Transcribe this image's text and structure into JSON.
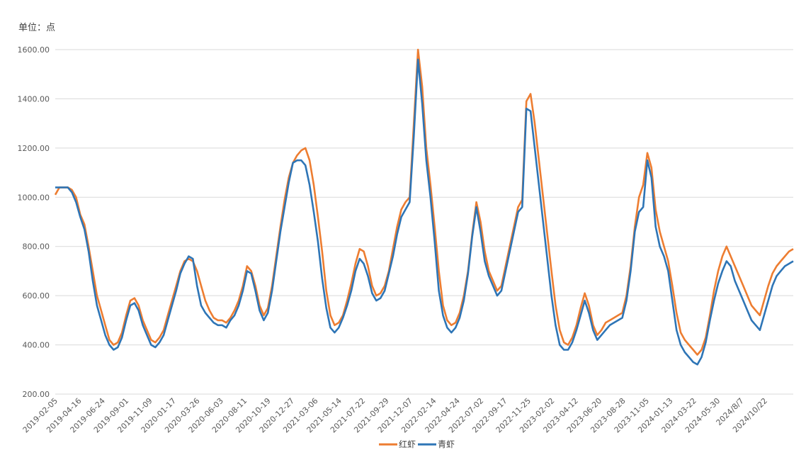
{
  "chart_data": {
    "type": "line",
    "unit_label": "单位：点",
    "ylim": [
      200,
      1600
    ],
    "y_ticks": [
      "200.00",
      "400.00",
      "600.00",
      "800.00",
      "1000.00",
      "1200.00",
      "1400.00",
      "1600.00"
    ],
    "grid": true,
    "legend_position": "bottom",
    "x_tick_labels": [
      "2019-02-05",
      "2019-04-16",
      "2019-06-24",
      "2019-09-01",
      "2019-11-09",
      "2020-01-17",
      "2020-03-26",
      "2020-06-03",
      "2020-08-11",
      "2020-10-19",
      "2020-12-27",
      "2021-03-06",
      "2021-05-14",
      "2021-07-22",
      "2021-09-29",
      "2021-12-07",
      "2022-02-14",
      "2022-04-24",
      "2022-07-02",
      "2022-09-17",
      "2022-11-25",
      "2023-02-02",
      "2023-04-12",
      "2023-06-20",
      "2023-08-28",
      "2023-11-05",
      "2024-01-13",
      "2024-03-22",
      "2024-05-30",
      "2024/8/7",
      "2024/10/22"
    ],
    "series": [
      {
        "name": "红虾",
        "color": "#ED7D31",
        "values": [
          1010,
          1040,
          1040,
          1040,
          1030,
          1000,
          930,
          890,
          800,
          700,
          600,
          540,
          480,
          420,
          400,
          410,
          450,
          520,
          580,
          590,
          560,
          500,
          460,
          420,
          410,
          430,
          460,
          520,
          580,
          640,
          700,
          740,
          750,
          740,
          700,
          640,
          580,
          540,
          510,
          500,
          500,
          490,
          510,
          540,
          580,
          640,
          720,
          700,
          640,
          560,
          520,
          550,
          640,
          760,
          880,
          990,
          1080,
          1140,
          1170,
          1190,
          1200,
          1150,
          1050,
          920,
          780,
          620,
          520,
          480,
          490,
          520,
          580,
          650,
          730,
          790,
          780,
          720,
          640,
          600,
          610,
          640,
          700,
          790,
          880,
          950,
          980,
          1000,
          1300,
          1600,
          1450,
          1200,
          1050,
          880,
          700,
          560,
          500,
          480,
          490,
          530,
          600,
          700,
          850,
          980,
          900,
          780,
          700,
          660,
          620,
          640,
          720,
          800,
          880,
          960,
          990,
          1390,
          1420,
          1300,
          1150,
          1000,
          850,
          700,
          560,
          460,
          410,
          400,
          430,
          480,
          550,
          610,
          560,
          480,
          440,
          460,
          490,
          500,
          510,
          520,
          530,
          600,
          720,
          880,
          1000,
          1050,
          1180,
          1120,
          950,
          860,
          800,
          740,
          640,
          530,
          450,
          420,
          400,
          380,
          360,
          380,
          430,
          520,
          620,
          700,
          760,
          800,
          760,
          720,
          680,
          640,
          600,
          560,
          540,
          520,
          580,
          640,
          690,
          720,
          740,
          760,
          780,
          790
        ]
      },
      {
        "name": "青虾",
        "color": "#2E75B6",
        "values": [
          1040,
          1040,
          1040,
          1040,
          1020,
          980,
          920,
          870,
          780,
          660,
          560,
          500,
          440,
          400,
          380,
          390,
          430,
          500,
          560,
          570,
          540,
          480,
          440,
          400,
          390,
          410,
          440,
          500,
          560,
          620,
          690,
          730,
          760,
          750,
          640,
          560,
          530,
          510,
          490,
          480,
          480,
          470,
          500,
          520,
          560,
          620,
          700,
          690,
          620,
          540,
          500,
          530,
          620,
          740,
          860,
          960,
          1060,
          1140,
          1150,
          1150,
          1130,
          1050,
          940,
          820,
          670,
          550,
          470,
          450,
          470,
          510,
          560,
          620,
          700,
          750,
          730,
          680,
          610,
          580,
          590,
          620,
          690,
          760,
          850,
          920,
          950,
          980,
          1250,
          1560,
          1380,
          1150,
          1000,
          820,
          620,
          520,
          470,
          450,
          470,
          510,
          580,
          690,
          840,
          960,
          860,
          740,
          680,
          640,
          600,
          620,
          700,
          780,
          860,
          940,
          960,
          1360,
          1350,
          1200,
          1050,
          900,
          750,
          600,
          480,
          400,
          380,
          380,
          410,
          460,
          520,
          580,
          530,
          460,
          420,
          440,
          460,
          480,
          490,
          500,
          510,
          580,
          700,
          860,
          940,
          960,
          1150,
          1080,
          880,
          800,
          760,
          700,
          580,
          460,
          400,
          370,
          350,
          330,
          320,
          350,
          410,
          500,
          580,
          650,
          700,
          740,
          720,
          660,
          620,
          580,
          540,
          500,
          480,
          460,
          520,
          580,
          640,
          680,
          700,
          720,
          730,
          740
        ]
      }
    ]
  }
}
